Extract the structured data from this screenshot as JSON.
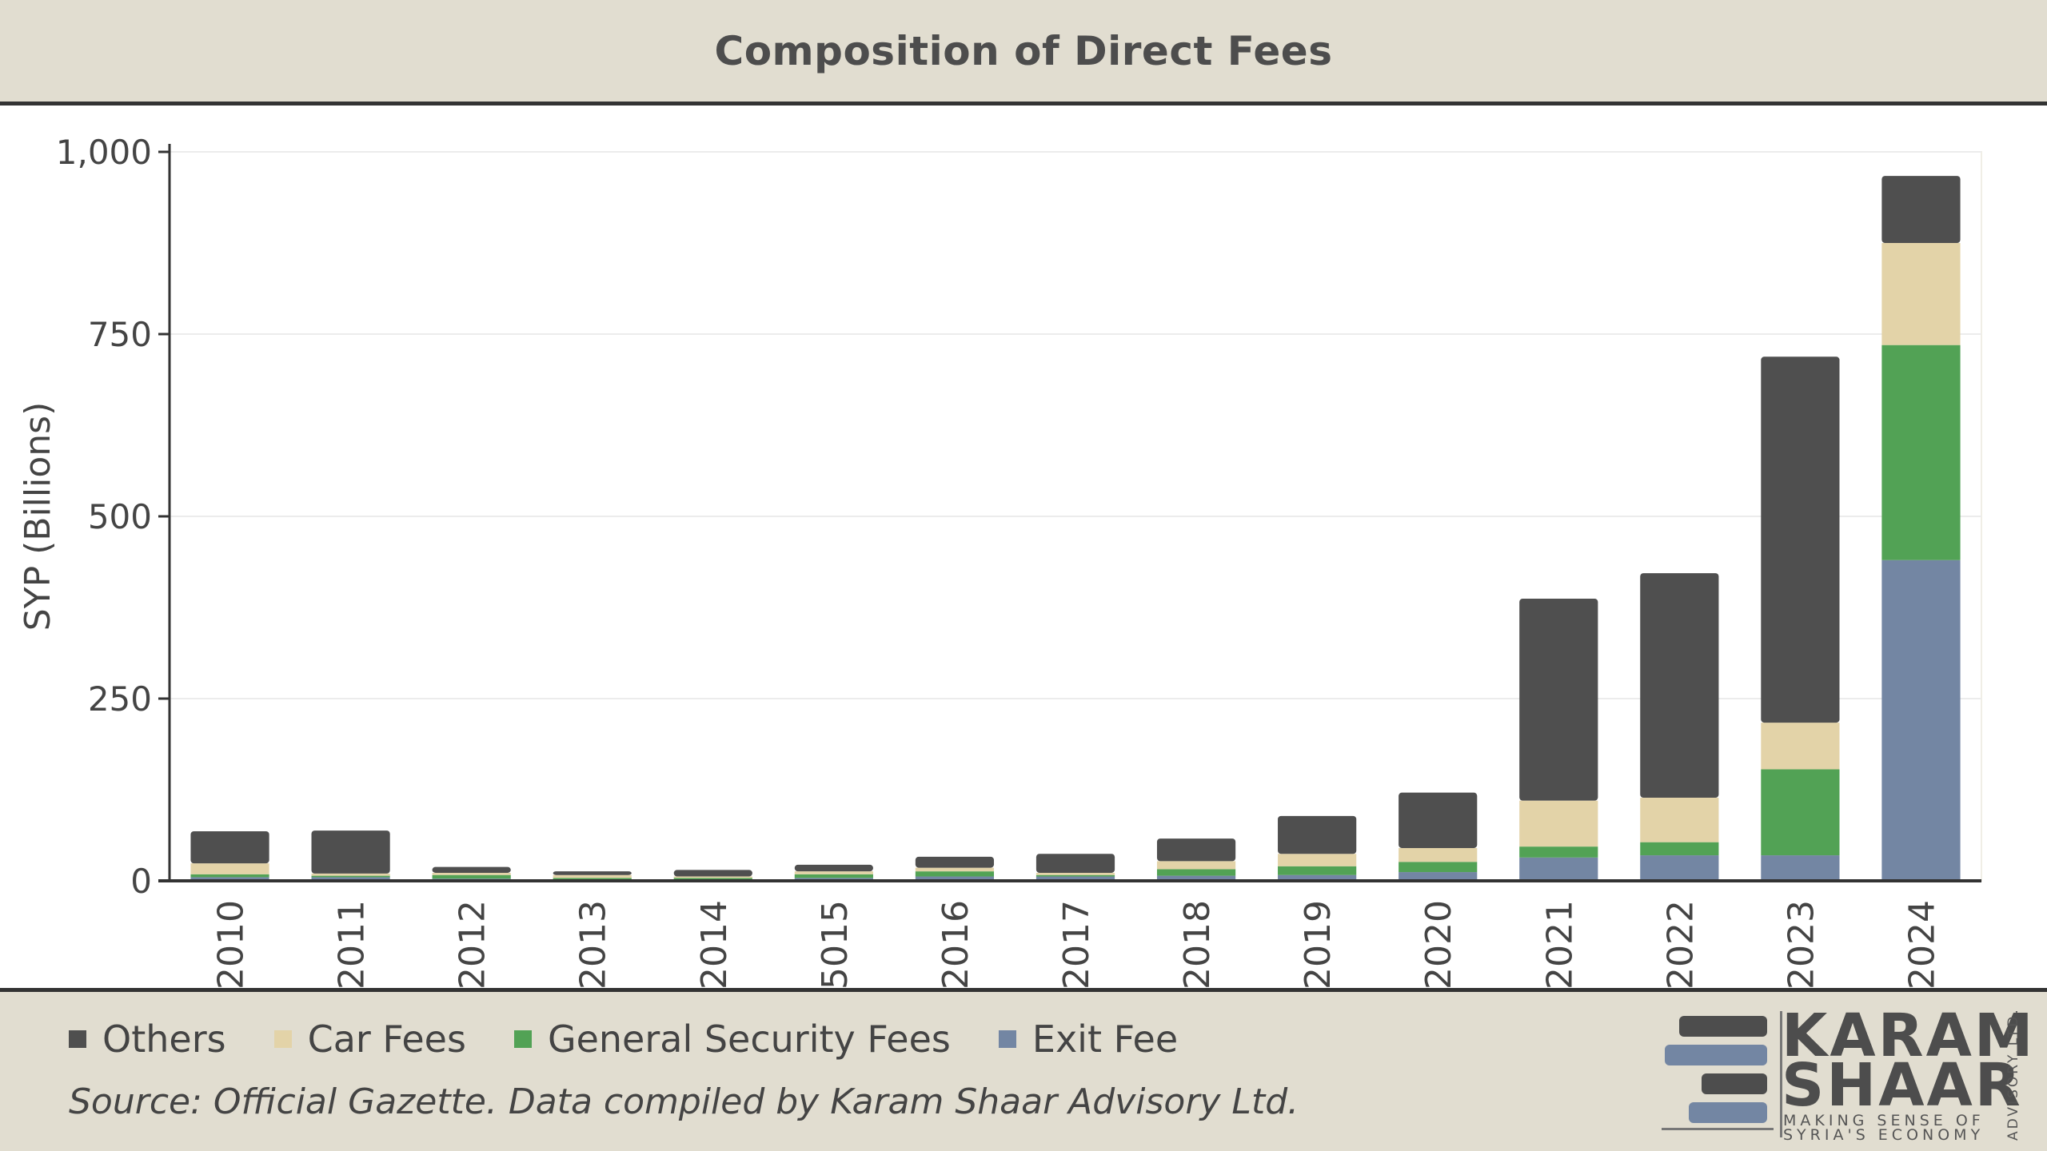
{
  "header": {
    "title": "Composition of Direct Fees"
  },
  "chart_data": {
    "type": "bar",
    "stacked": true,
    "title": "Composition of Direct Fees",
    "xlabel": "",
    "ylabel": "SYP (Billions)",
    "ylim": [
      0,
      1000
    ],
    "yticks": [
      0,
      250,
      500,
      750,
      1000
    ],
    "ytick_labels": [
      "0",
      "250",
      "500",
      "750",
      "1,000"
    ],
    "categories": [
      "2010",
      "2011",
      "2012",
      "2013",
      "2014",
      "5015",
      "2016",
      "2017",
      "2018",
      "2019",
      "2020",
      "2021",
      "2022",
      "2023",
      "2024"
    ],
    "series": [
      {
        "name": "Exit Fee",
        "color": "#7386a3",
        "values": [
          5,
          5,
          3,
          2,
          2,
          4,
          6,
          6,
          7,
          8,
          12,
          32,
          35,
          35,
          440
        ]
      },
      {
        "name": "General Security Fees",
        "color": "#52a255",
        "values": [
          4,
          2,
          5,
          2,
          2,
          5,
          7,
          2,
          9,
          12,
          14,
          15,
          18,
          118,
          295
        ]
      },
      {
        "name": "Car Fees",
        "color": "#e3d3a8",
        "values": [
          15,
          3,
          3,
          4,
          2,
          4,
          5,
          3,
          11,
          17,
          19,
          63,
          61,
          64,
          140
        ]
      },
      {
        "name": "Others",
        "color": "#4f4f4f",
        "values": [
          44,
          59,
          8,
          5,
          9,
          9,
          15,
          26,
          31,
          52,
          76,
          277,
          308,
          502,
          92
        ]
      }
    ],
    "legend": {
      "position": "bottom-left",
      "order": [
        "Others",
        "Car Fees",
        "General Security Fees",
        "Exit Fee"
      ]
    },
    "grid": true
  },
  "legend_items": [
    {
      "label": "Others",
      "color": "#4f4f4f"
    },
    {
      "label": "Car Fees",
      "color": "#e3d3a8"
    },
    {
      "label": "General Security Fees",
      "color": "#52a255"
    },
    {
      "label": "Exit Fee",
      "color": "#7386a3"
    }
  ],
  "footer": {
    "source": "Source: Official Gazette. Data compiled by Karam Shaar Advisory Ltd."
  },
  "logo": {
    "line1": "KARAM",
    "line2": "SHAAR",
    "tag1": "MAKING SENSE OF",
    "tag2": "SYRIA'S ECONOMY",
    "vertical": "ADVISORY LTD."
  }
}
